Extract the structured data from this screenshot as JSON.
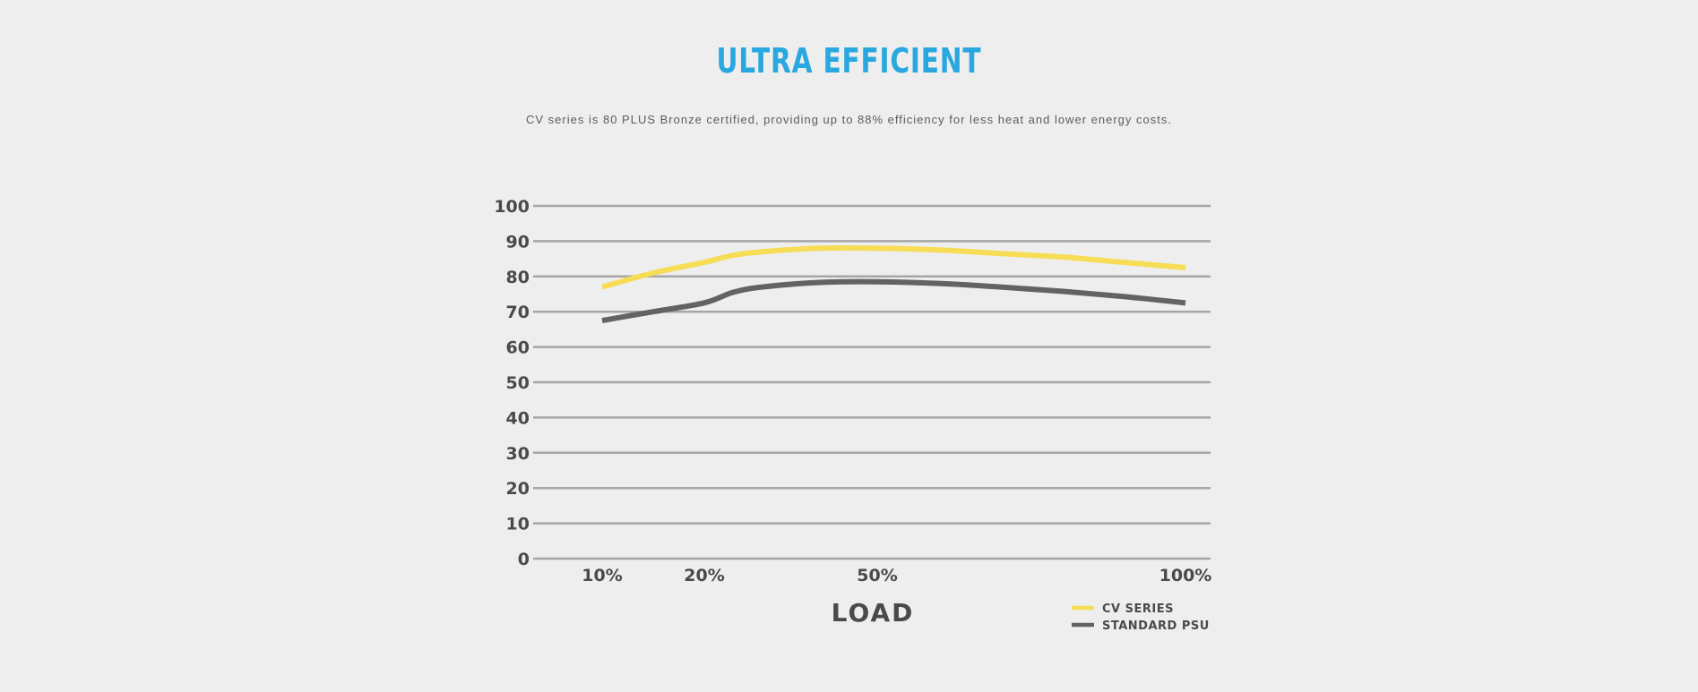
{
  "header": {
    "title": "ULTRA EFFICIENT",
    "subtitle": "CV series is 80 PLUS Bronze certified, providing up to 88% efficiency for less heat and lower energy costs."
  },
  "colors": {
    "title": "#29a8e0",
    "cv_series": "#f7dc55",
    "standard_psu": "#636363",
    "grid": "#a6a6a6"
  },
  "chart_data": {
    "type": "line",
    "title": "",
    "xlabel": "LOAD",
    "ylabel": "",
    "ylim": [
      0,
      100
    ],
    "yticks": [
      0,
      10,
      20,
      30,
      40,
      50,
      60,
      70,
      80,
      90,
      100
    ],
    "xticks": [
      {
        "label": "10%",
        "value": 10
      },
      {
        "label": "20%",
        "value": 20
      },
      {
        "label": "50%",
        "value": 50
      },
      {
        "label": "100%",
        "value": 100
      }
    ],
    "grid": true,
    "legend": "bottom-right",
    "series": [
      {
        "name": "CV SERIES",
        "color": "#f7dc55",
        "x": [
          10,
          15,
          20,
          25,
          30,
          40,
          50,
          60,
          70,
          80,
          90,
          100
        ],
        "y": [
          77,
          81,
          84,
          86,
          87,
          88,
          88,
          87.5,
          86.5,
          85.5,
          84,
          82.5
        ]
      },
      {
        "name": "STANDARD PSU",
        "color": "#636363",
        "x": [
          10,
          15,
          20,
          25,
          30,
          40,
          50,
          60,
          70,
          80,
          90,
          100
        ],
        "y": [
          67.5,
          70,
          72.5,
          75.5,
          77,
          78.3,
          78.5,
          78,
          77,
          75.8,
          74.3,
          72.5
        ]
      }
    ]
  }
}
